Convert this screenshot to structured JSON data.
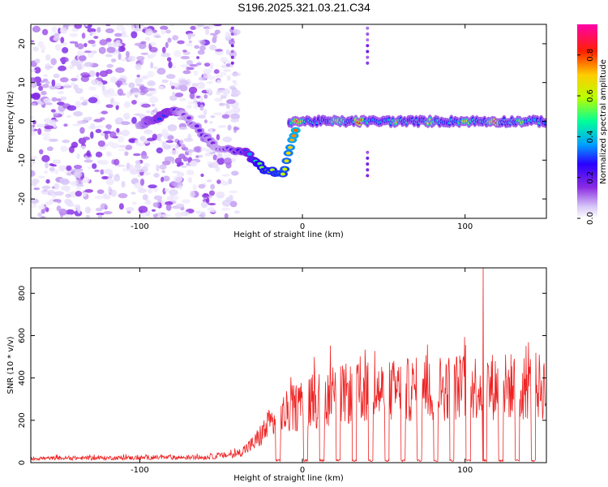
{
  "title": "S196.2025.321.03.21.C34",
  "colors": {
    "snr_line": "#ee2222",
    "frame": "#000000",
    "colormap": [
      "#ffffff",
      "#d8c8f8",
      "#8a2be2",
      "#2a00ff",
      "#00a0ff",
      "#00ff99",
      "#b8ff00",
      "#ffcc00",
      "#ff2200",
      "#ff00aa"
    ]
  },
  "chart_data": [
    {
      "type": "heatmap",
      "name": "spectrogram",
      "xlabel": "Height of straight line (km)",
      "ylabel": "Frequency (Hz)",
      "xlim": [
        -167,
        150
      ],
      "ylim": [
        -25,
        25
      ],
      "xticks": [
        -100,
        0,
        100
      ],
      "yticks": [
        -20,
        -10,
        0,
        10,
        20
      ],
      "xtick_labels": [
        "-100",
        "0",
        "100"
      ],
      "ytick_labels": [
        "-20",
        "-10",
        "0",
        "10",
        "20"
      ],
      "colorbar": {
        "label": "Normalized spectral amplitude",
        "range": [
          0,
          0.95
        ],
        "ticks": [
          0,
          0.2,
          0.4,
          0.6,
          0.8
        ],
        "tick_labels": [
          "0.0",
          "0.2",
          "0.4",
          "0.6",
          "0.8"
        ]
      },
      "signal_track": [
        {
          "x": -100,
          "y": -1,
          "amp": 0.15
        },
        {
          "x": -95,
          "y": 0,
          "amp": 0.25
        },
        {
          "x": -88,
          "y": 1,
          "amp": 0.3
        },
        {
          "x": -80,
          "y": 3,
          "amp": 0.3
        },
        {
          "x": -73,
          "y": 2,
          "amp": 0.15
        },
        {
          "x": -60,
          "y": -4,
          "amp": 0.2
        },
        {
          "x": -52,
          "y": -7,
          "amp": 0.15
        },
        {
          "x": -35,
          "y": -8,
          "amp": 0.3
        },
        {
          "x": -25,
          "y": -12,
          "amp": 0.55
        },
        {
          "x": -12,
          "y": -14,
          "amp": 0.6
        },
        {
          "x": -3,
          "y": 0,
          "amp": 0.8
        },
        {
          "x": 22,
          "y": 0,
          "amp": 0.5
        },
        {
          "x": 35,
          "y": 0,
          "amp": 0.95
        },
        {
          "x": 58,
          "y": 0,
          "amp": 0.45
        },
        {
          "x": 78,
          "y": 0,
          "amp": 0.4
        },
        {
          "x": 100,
          "y": 0,
          "amp": 0.45
        },
        {
          "x": 118,
          "y": 0,
          "amp": 0.85
        },
        {
          "x": 135,
          "y": 0,
          "amp": 0.4
        }
      ]
    },
    {
      "type": "line",
      "name": "snr",
      "xlabel": "Height of straight line (km)",
      "ylabel": "SNR (10 * v/v)",
      "xlim": [
        -167,
        150
      ],
      "ylim": [
        0,
        920
      ],
      "xticks": [
        -100,
        0,
        100
      ],
      "yticks": [
        0,
        200,
        400,
        600,
        800
      ],
      "xtick_labels": [
        "-100",
        "0",
        "100"
      ],
      "ytick_labels": [
        "0",
        "200",
        "400",
        "600",
        "800"
      ],
      "envelope": [
        {
          "x": -167,
          "y": 20
        },
        {
          "x": -60,
          "y": 25
        },
        {
          "x": -40,
          "y": 40
        },
        {
          "x": -30,
          "y": 90
        },
        {
          "x": -20,
          "y": 180
        },
        {
          "x": -5,
          "y": 260
        },
        {
          "x": 20,
          "y": 320
        },
        {
          "x": 60,
          "y": 340
        },
        {
          "x": 100,
          "y": 360
        },
        {
          "x": 150,
          "y": 360
        }
      ],
      "dropouts_x": [
        -15,
        2,
        12,
        22,
        32,
        42,
        52,
        62,
        72,
        82,
        92,
        102,
        112,
        122,
        132,
        142
      ],
      "peak": {
        "x": 111,
        "y": 920
      }
    }
  ]
}
